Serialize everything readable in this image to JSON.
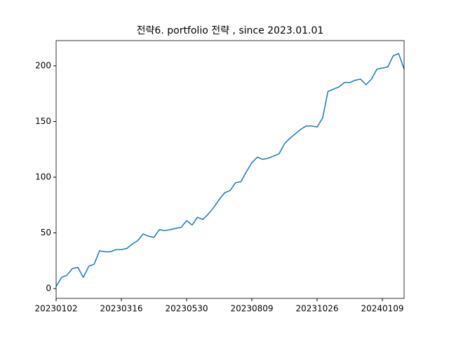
{
  "chart_data": {
    "type": "line",
    "title": "전략6. portfolio 전략 , since 2023.01.01",
    "categories": [
      "20230102",
      null,
      null,
      null,
      null,
      null,
      null,
      null,
      null,
      null,
      null,
      null,
      "20230316",
      null,
      null,
      null,
      null,
      null,
      null,
      null,
      null,
      null,
      null,
      null,
      "20230530",
      null,
      null,
      null,
      null,
      null,
      null,
      null,
      null,
      null,
      null,
      null,
      "20230809",
      null,
      null,
      null,
      null,
      null,
      null,
      null,
      null,
      null,
      null,
      null,
      "20231026",
      null,
      null,
      null,
      null,
      null,
      null,
      null,
      null,
      null,
      null,
      null,
      "20240109",
      null,
      null,
      null,
      null
    ],
    "series": [
      {
        "color": "#1f77b4",
        "values": [
          2,
          10,
          12,
          18,
          19,
          10,
          20,
          22,
          34,
          33,
          33,
          35,
          35,
          36,
          40,
          43,
          49,
          47,
          46,
          53,
          52,
          53,
          54,
          55,
          61,
          57,
          64,
          62,
          67,
          73,
          80,
          86,
          88,
          95,
          96,
          105,
          113,
          118,
          116,
          117,
          119,
          121,
          130,
          135,
          139,
          143,
          146,
          146,
          145,
          153,
          177,
          179,
          181,
          185,
          185,
          187,
          188,
          183,
          188,
          197,
          198,
          199,
          209,
          211,
          197
        ]
      }
    ],
    "ylim": [
      -8.8,
      222.6
    ],
    "yticks": [
      0,
      50,
      100,
      150,
      200
    ]
  }
}
